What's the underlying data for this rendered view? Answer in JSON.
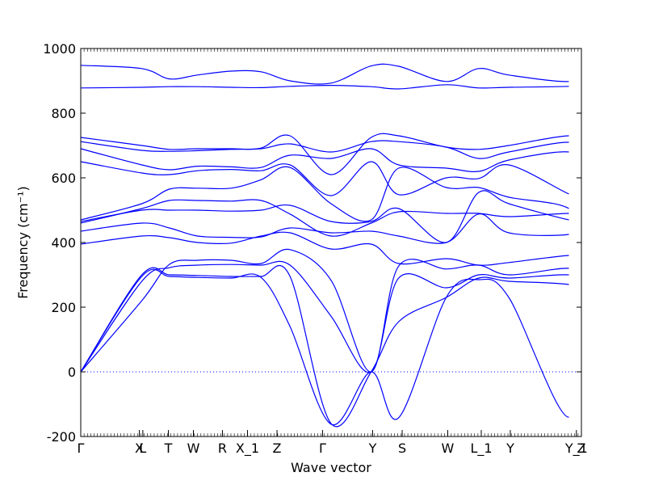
{
  "chart_data": {
    "type": "line",
    "title": "",
    "xlabel": "Wave vector",
    "ylabel": "Frequency (cm⁻¹)",
    "ylim": [
      -200,
      1000
    ],
    "yticks": [
      -200,
      0,
      200,
      400,
      600,
      800,
      1000
    ],
    "line_color": "#0000ff",
    "zero_line": {
      "value": 0,
      "style": "dotted",
      "color": "#0000ff"
    },
    "grid": false,
    "legend": "none",
    "path_positions": [
      0,
      0.122,
      0.177,
      0.233,
      0.3,
      0.36,
      0.418,
      0.5,
      0.58,
      0.635,
      0.73,
      0.795,
      0.855,
      0.975,
      1.0
    ],
    "kpoint_labels": [
      {
        "label": "Γ",
        "x": 0.0
      },
      {
        "label": "X",
        "x": 0.117
      },
      {
        "label": "L",
        "x": 0.124
      },
      {
        "label": "T",
        "x": 0.175
      },
      {
        "label": "W",
        "x": 0.225
      },
      {
        "label": "R",
        "x": 0.283
      },
      {
        "label": "X_1",
        "x": 0.333
      },
      {
        "label": "Z",
        "x": 0.392
      },
      {
        "label": "Γ",
        "x": 0.483
      },
      {
        "label": "Y",
        "x": 0.583
      },
      {
        "label": "S",
        "x": 0.642
      },
      {
        "label": "W",
        "x": 0.733
      },
      {
        "label": "L_1",
        "x": 0.8
      },
      {
        "label": "Y",
        "x": 0.858
      },
      {
        "label": "Y_1",
        "x": 0.99
      },
      {
        "label": "Z",
        "x": 1.0
      }
    ],
    "series": [
      {
        "values": [
          948,
          938,
          906,
          918,
          930,
          928,
          900,
          893,
          946,
          945,
          898,
          938,
          918,
          898,
          935,
          893
        ]
      },
      {
        "values": [
          878,
          880,
          882,
          882,
          880,
          879,
          883,
          886,
          882,
          875,
          888,
          878,
          880,
          883,
          888,
          882
        ]
      },
      {
        "values": [
          725,
          700,
          688,
          690,
          690,
          692,
          730,
          610,
          725,
          730,
          695,
          688,
          700,
          730,
          700,
          730
        ]
      },
      {
        "values": [
          712,
          685,
          682,
          684,
          688,
          690,
          705,
          680,
          712,
          712,
          695,
          660,
          680,
          710,
          670,
          710
        ]
      },
      {
        "values": [
          690,
          640,
          625,
          636,
          634,
          632,
          670,
          660,
          690,
          640,
          630,
          620,
          655,
          680,
          630,
          690
        ]
      },
      {
        "values": [
          650,
          615,
          610,
          622,
          626,
          622,
          640,
          545,
          650,
          548,
          600,
          598,
          640,
          550,
          545,
          545
        ]
      },
      {
        "values": [
          470,
          520,
          565,
          568,
          568,
          594,
          632,
          520,
          470,
          630,
          570,
          570,
          540,
          505,
          405,
          660
        ]
      },
      {
        "values": [
          465,
          500,
          500,
          500,
          497,
          500,
          515,
          465,
          465,
          505,
          400,
          555,
          520,
          470,
          470,
          520
        ]
      },
      {
        "values": [
          460,
          505,
          530,
          530,
          528,
          530,
          488,
          420,
          460,
          495,
          490,
          490,
          480,
          490,
          480,
          420
        ]
      },
      {
        "values": [
          435,
          460,
          445,
          420,
          416,
          417,
          445,
          430,
          435,
          420,
          400,
          488,
          430,
          425,
          460,
          400
        ]
      },
      {
        "values": [
          395,
          420,
          415,
          400,
          398,
          420,
          430,
          380,
          395,
          335,
          350,
          330,
          338,
          360,
          350,
          385
        ]
      },
      {
        "values": [
          0,
          220,
          332,
          345,
          345,
          335,
          378,
          283,
          0,
          327,
          318,
          330,
          300,
          320,
          280,
          330
        ]
      },
      {
        "values": [
          0,
          280,
          322,
          330,
          332,
          330,
          330,
          172,
          0,
          290,
          260,
          300,
          290,
          300,
          270,
          300
        ]
      },
      {
        "values": [
          0,
          300,
          300,
          298,
          295,
          295,
          295,
          -160,
          0,
          155,
          230,
          290,
          280,
          270,
          240,
          270
        ]
      },
      {
        "values": [
          0,
          295,
          295,
          292,
          290,
          292,
          140,
          -162,
          0,
          -142,
          230,
          285,
          230,
          -140,
          265,
          -162
        ]
      }
    ]
  }
}
